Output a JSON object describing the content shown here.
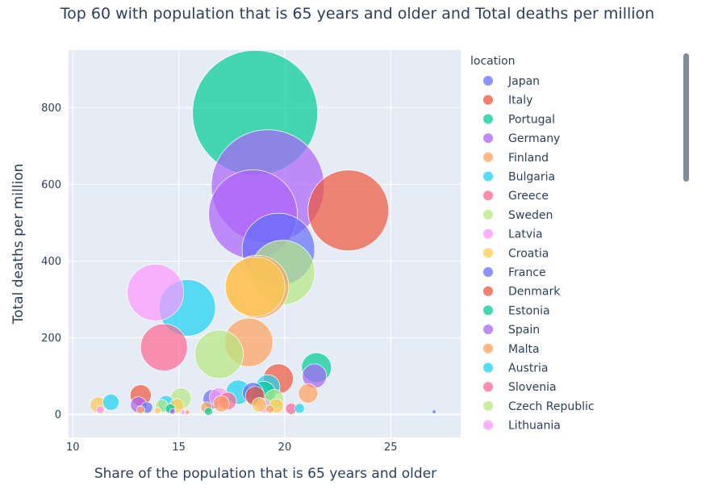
{
  "chart_data": {
    "type": "scatter",
    "title": "Top 60 with population that is 65 years and older and Total deaths per million",
    "xlabel": "Share of the population that is 65 years and older",
    "ylabel": "Total deaths per million",
    "xlim": [
      9.8,
      28.3
    ],
    "ylim": [
      -60,
      950
    ],
    "x_ticks": [
      10,
      15,
      20,
      25
    ],
    "y_ticks": [
      0,
      200,
      400,
      600,
      800
    ],
    "grid": true,
    "legend_title": "location",
    "legend_position": "right",
    "size_encoding": "total deaths",
    "series": [
      {
        "name": "Japan",
        "color": "#636efa",
        "x": [
          27.05
        ],
        "y": [
          7
        ],
        "size": [
          5
        ]
      },
      {
        "name": "Italy",
        "color": "#EF553B",
        "x": [
          23.0
        ],
        "y": [
          532
        ],
        "size": [
          100
        ]
      },
      {
        "name": "Portugal",
        "color": "#00cc96",
        "x": [
          18.6
        ],
        "y": [
          786
        ],
        "size": [
          155
        ]
      },
      {
        "name": "Germany",
        "color": "#ab63fa",
        "x": [
          19.2
        ],
        "y": [
          595
        ],
        "size": [
          140
        ]
      },
      {
        "name": "Finland",
        "color": "#FFA15A",
        "x": [
          18.7
        ],
        "y": [
          333
        ],
        "size": [
          78
        ]
      },
      {
        "name": "Bulgaria",
        "color": "#19d3f3",
        "x": [
          15.4
        ],
        "y": [
          278
        ],
        "size": [
          70
        ]
      },
      {
        "name": "Greece",
        "color": "#FF6692",
        "x": [
          14.3
        ],
        "y": [
          175
        ],
        "size": [
          58
        ]
      },
      {
        "name": "Sweden",
        "color": "#B6E880",
        "x": [
          19.9
        ],
        "y": [
          370
        ],
        "size": [
          80
        ]
      },
      {
        "name": "Latvia",
        "color": "#FF97FF",
        "x": [
          13.9
        ],
        "y": [
          318
        ],
        "size": [
          70
        ]
      },
      {
        "name": "Croatia",
        "color": "#FECB52",
        "x": [
          18.6
        ],
        "y": [
          333
        ],
        "size": [
          74
        ]
      },
      {
        "name": "France",
        "color": "#636efa",
        "x": [
          19.7
        ],
        "y": [
          430
        ],
        "size": [
          90
        ]
      },
      {
        "name": "Denmark",
        "color": "#EF553B",
        "x": [
          19.7
        ],
        "y": [
          93
        ],
        "size": [
          37
        ]
      },
      {
        "name": "Estonia",
        "color": "#00cc96",
        "x": [
          21.5
        ],
        "y": [
          122
        ],
        "size": [
          37
        ]
      },
      {
        "name": "Spain",
        "color": "#ab63fa",
        "x": [
          18.5
        ],
        "y": [
          522
        ],
        "size": [
          110
        ]
      },
      {
        "name": "Malta",
        "color": "#FFA15A",
        "x": [
          18.3
        ],
        "y": [
          188
        ],
        "size": [
          60
        ]
      },
      {
        "name": "Austria",
        "color": "#19d3f3",
        "x": [
          19.2
        ],
        "y": [
          72
        ],
        "size": [
          30
        ]
      },
      {
        "name": "Slovenia",
        "color": "#FF6692",
        "x": [
          17.3
        ],
        "y": [
          35
        ],
        "size": [
          22
        ]
      },
      {
        "name": "Czech Republic",
        "color": "#B6E880",
        "x": [
          16.9
        ],
        "y": [
          157
        ],
        "size": [
          60
        ]
      },
      {
        "name": "Lithuania",
        "color": "#FF97FF",
        "x": [
          19.0
        ],
        "y": [
          23
        ],
        "size": [
          18
        ]
      }
    ],
    "small_points": [
      {
        "x": 11.2,
        "y": 25,
        "size": 20,
        "color": "#FECB52"
      },
      {
        "x": 11.3,
        "y": 12,
        "size": 10,
        "color": "#FF97FF"
      },
      {
        "x": 11.8,
        "y": 32,
        "size": 20,
        "color": "#19d3f3"
      },
      {
        "x": 13.1,
        "y": 25,
        "size": 20,
        "color": "#ab63fa"
      },
      {
        "x": 13.2,
        "y": 50,
        "size": 26,
        "color": "#EF553B"
      },
      {
        "x": 13.2,
        "y": 12,
        "size": 10,
        "color": "#FFA15A"
      },
      {
        "x": 13.5,
        "y": 18,
        "size": 14,
        "color": "#636efa"
      },
      {
        "x": 14.0,
        "y": 10,
        "size": 8,
        "color": "#FECB52"
      },
      {
        "x": 14.2,
        "y": 22,
        "size": 16,
        "color": "#B6E880"
      },
      {
        "x": 14.4,
        "y": 28,
        "size": 20,
        "color": "#19d3f3"
      },
      {
        "x": 14.6,
        "y": 15,
        "size": 12,
        "color": "#00cc96"
      },
      {
        "x": 14.7,
        "y": 8,
        "size": 7,
        "color": "#ab63fa"
      },
      {
        "x": 14.9,
        "y": 22,
        "size": 18,
        "color": "#FECB52"
      },
      {
        "x": 15.1,
        "y": 42,
        "size": 26,
        "color": "#B6E880"
      },
      {
        "x": 15.2,
        "y": 6,
        "size": 6,
        "color": "#FF97FF"
      },
      {
        "x": 15.4,
        "y": 6,
        "size": 6,
        "color": "#FFA15A"
      },
      {
        "x": 16.3,
        "y": 18,
        "size": 14,
        "color": "#FFA15A"
      },
      {
        "x": 16.4,
        "y": 8,
        "size": 10,
        "color": "#00cc96"
      },
      {
        "x": 16.6,
        "y": 40,
        "size": 24,
        "color": "#636efa"
      },
      {
        "x": 16.9,
        "y": 45,
        "size": 24,
        "color": "#FF97FF"
      },
      {
        "x": 17.0,
        "y": 28,
        "size": 20,
        "color": "#FFA15A"
      },
      {
        "x": 17.8,
        "y": 58,
        "size": 30,
        "color": "#19d3f3"
      },
      {
        "x": 18.5,
        "y": 56,
        "size": 26,
        "color": "#636efa"
      },
      {
        "x": 18.6,
        "y": 48,
        "size": 24,
        "color": "#EF553B"
      },
      {
        "x": 18.8,
        "y": 25,
        "size": 18,
        "color": "#FECB52"
      },
      {
        "x": 19.0,
        "y": 55,
        "size": 30,
        "color": "#00cc96"
      },
      {
        "x": 19.5,
        "y": 40,
        "size": 24,
        "color": "#B6E880"
      },
      {
        "x": 19.3,
        "y": 14,
        "size": 10,
        "color": "#FFA15A"
      },
      {
        "x": 19.6,
        "y": 22,
        "size": 18,
        "color": "#FECB52"
      },
      {
        "x": 20.3,
        "y": 15,
        "size": 14,
        "color": "#FF6692"
      },
      {
        "x": 20.7,
        "y": 16,
        "size": 12,
        "color": "#19d3f3"
      },
      {
        "x": 21.1,
        "y": 55,
        "size": 24,
        "color": "#FFA15A"
      },
      {
        "x": 21.4,
        "y": 100,
        "size": 30,
        "color": "#ab63fa"
      }
    ]
  }
}
